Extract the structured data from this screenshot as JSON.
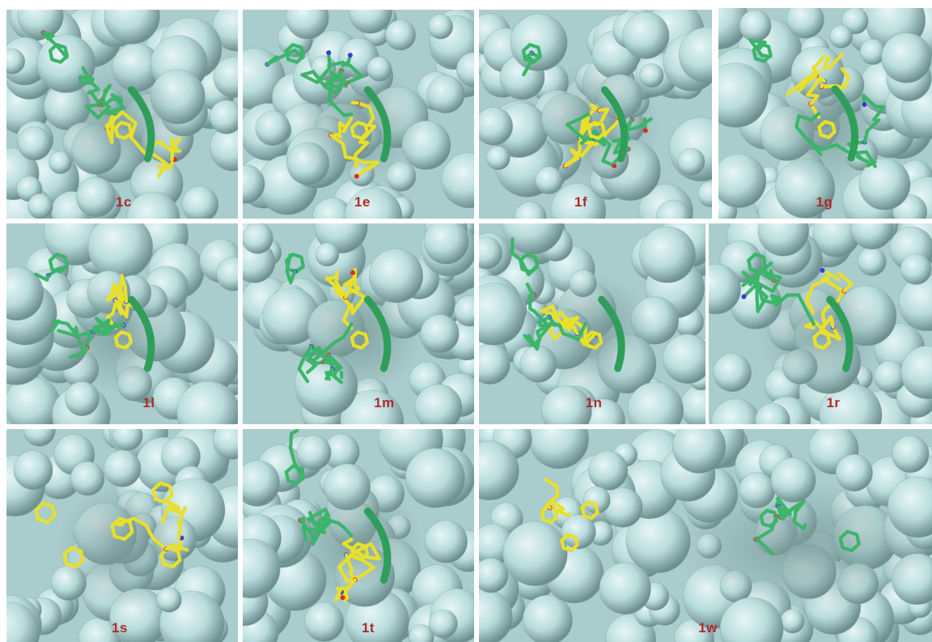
{
  "figure": {
    "panels": [
      {
        "id": "1c",
        "label": "1c",
        "ligand": "overlay"
      },
      {
        "id": "1e",
        "label": "1e",
        "ligand": "overlay"
      },
      {
        "id": "1f",
        "label": "1f",
        "ligand": "overlay"
      },
      {
        "id": "1g",
        "label": "1g",
        "ligand": "overlay"
      },
      {
        "id": "1l",
        "label": "1l",
        "ligand": "overlay"
      },
      {
        "id": "1m",
        "label": "1m",
        "ligand": "overlay"
      },
      {
        "id": "1n",
        "label": "1n",
        "ligand": "overlay"
      },
      {
        "id": "1r",
        "label": "1r",
        "ligand": "overlay"
      },
      {
        "id": "1s",
        "label": "1s",
        "ligand": "yellow-only"
      },
      {
        "id": "1t",
        "label": "1t",
        "ligand": "overlay"
      },
      {
        "id": "1w",
        "label": "1w",
        "ligand": "separate"
      }
    ],
    "colors": {
      "surface": "#b9dcdc",
      "surface_highlight": "#e8f6f6",
      "surface_shadow": "#6f9090",
      "ligand_green": "#3cb56a",
      "ligand_yellow": "#e8e02a",
      "nitrogen": "#3a3ae0",
      "oxygen": "#e02a2a",
      "label": "#b02a2a"
    }
  }
}
